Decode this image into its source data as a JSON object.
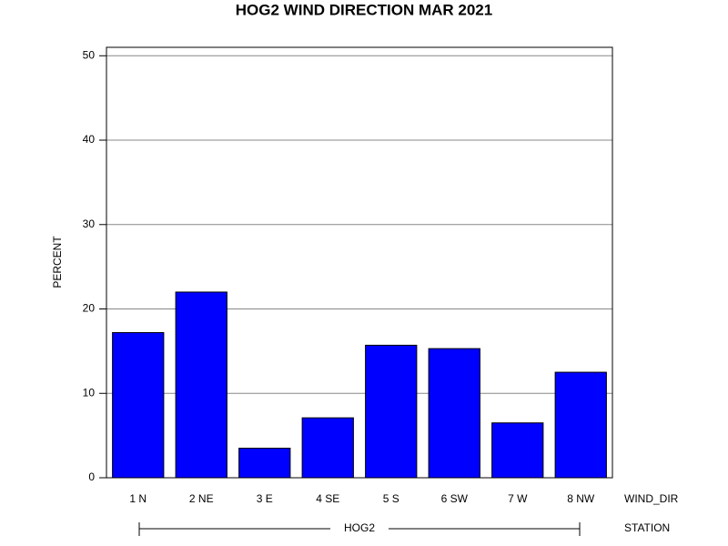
{
  "chart_data": {
    "type": "bar",
    "title": "HOG2 WIND DIRECTION MAR 2021",
    "y_label": "PERCENT",
    "x_label": "WIND_DIR",
    "group_label": "STATION",
    "group": "HOG2",
    "categories": [
      "1 N",
      "2 NE",
      "3 E",
      "4 SE",
      "5 S",
      "6 SW",
      "7 W",
      "8 NW"
    ],
    "values": [
      17.2,
      22.0,
      3.5,
      7.1,
      15.7,
      15.3,
      6.5,
      12.5
    ],
    "color": "#0000ff",
    "ylim": [
      0,
      51
    ],
    "yticks": [
      0,
      10,
      20,
      30,
      40,
      50
    ],
    "grid": true
  }
}
